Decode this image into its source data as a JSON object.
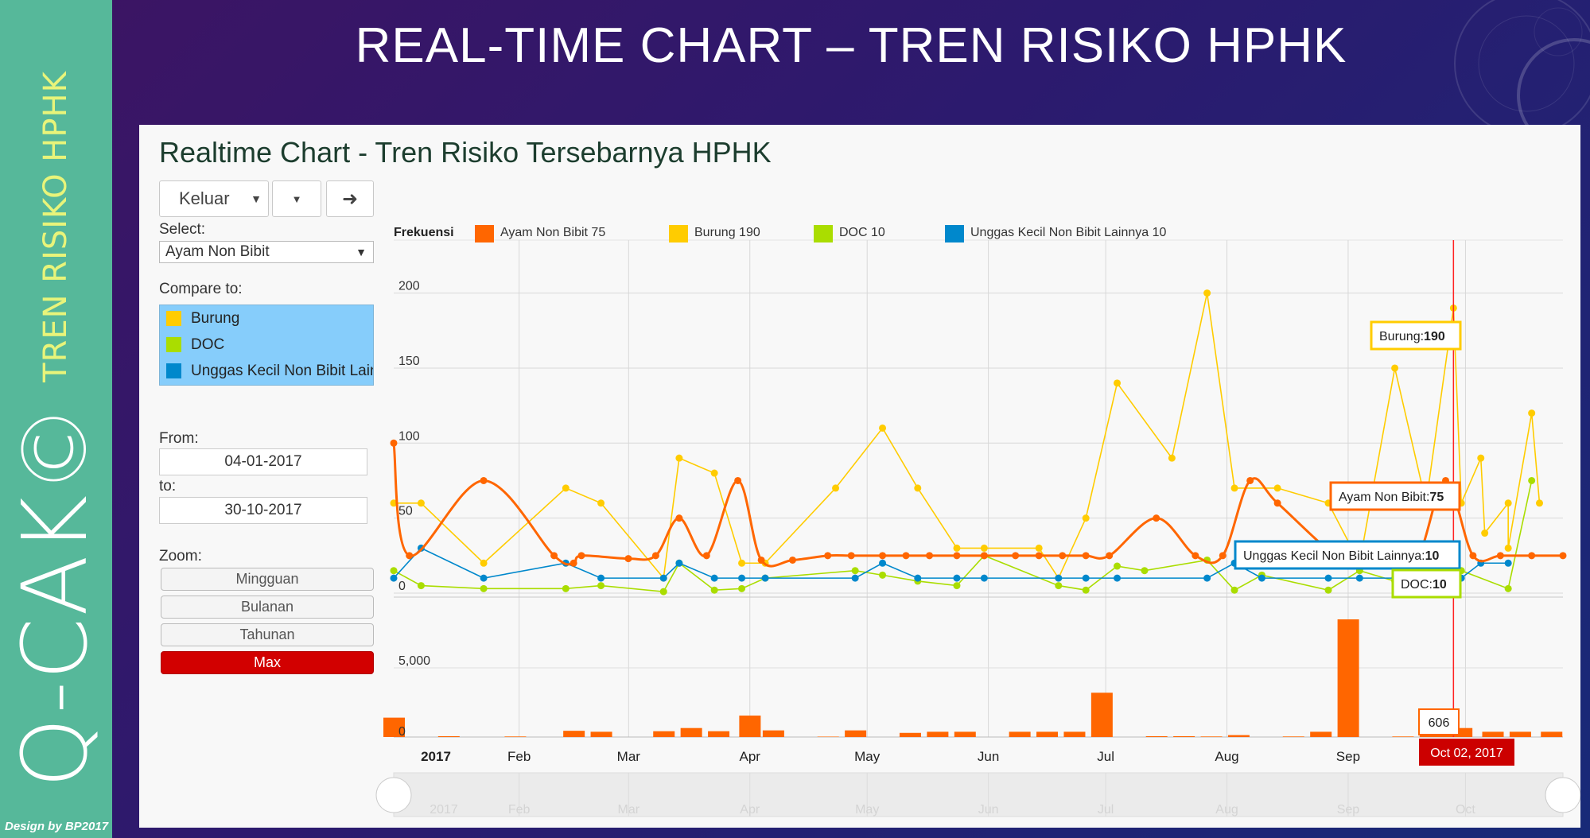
{
  "slide": {
    "title": "REAL-TIME CHART – TREN RISIKO HPHK",
    "sidebar_brand": "Q-CAK©",
    "sidebar_subtitle": "TREN RISIKO HPHK",
    "credit": "Design by BP2017"
  },
  "panel": {
    "title": "Realtime Chart - Tren Risiko Tersebarnya HPHK",
    "controls": {
      "direction_value": "Keluar",
      "go_icon": "arrow-right-icon",
      "select_label": "Select:",
      "select_value": "Ayam Non Bibit",
      "compare_label": "Compare to:",
      "compare_items": [
        "Burung",
        "DOC",
        "Unggas Kecil Non Bibit Lainnya"
      ],
      "from_label": "From:",
      "from_value": "04-01-2017",
      "to_label": "to:",
      "to_value": "30-10-2017",
      "zoom_label": "Zoom:",
      "zoom_buttons": [
        "Mingguan",
        "Bulanan",
        "Tahunan",
        "Max"
      ],
      "zoom_active": "Max"
    }
  },
  "chart_data": {
    "type": "line",
    "ylabel": "Frekuensi",
    "colors": [
      "#ff6600",
      "#ffcc00",
      "#aadd00",
      "#0088cc"
    ],
    "legend": {
      "placement": "top",
      "entries": [
        {
          "name": "Ayam Non Bibit",
          "value": "75",
          "color": "#ff6600"
        },
        {
          "name": "Burung",
          "value": "190",
          "color": "#ffcc00"
        },
        {
          "name": "DOC",
          "value": "10",
          "color": "#aadd00"
        },
        {
          "name": "Unggas Kecil Non Bibit Lainnya",
          "value": "10",
          "color": "#0088cc"
        }
      ]
    },
    "x_range": [
      "2017-01-04",
      "2017-10-30"
    ],
    "y_range": [
      0,
      230
    ],
    "y_ticks": [
      "200",
      "150",
      "100",
      "50",
      "0"
    ],
    "x_ticks": [
      "2017",
      "Feb",
      "Mar",
      "Apr",
      "May",
      "Jun",
      "Jul",
      "Aug",
      "Sep",
      "Oct"
    ],
    "navigator_ticks": [
      "2017",
      "Feb",
      "Mar",
      "Apr",
      "May",
      "Jun",
      "Jul",
      "Aug",
      "Sep",
      "Oct"
    ],
    "grid": true,
    "series": [
      {
        "name": "Ayam Non Bibit",
        "color": "#ff6600",
        "smooth": true,
        "points": [
          [
            "2017-01-04",
            100
          ],
          [
            "2017-01-08",
            25
          ],
          [
            "2017-01-27",
            75
          ],
          [
            "2017-02-14",
            25
          ],
          [
            "2017-02-19",
            20
          ],
          [
            "2017-02-21",
            25
          ],
          [
            "2017-03-05",
            23
          ],
          [
            "2017-03-12",
            25
          ],
          [
            "2017-03-18",
            50
          ],
          [
            "2017-03-25",
            25
          ],
          [
            "2017-04-02",
            75
          ],
          [
            "2017-04-08",
            22
          ],
          [
            "2017-04-16",
            22
          ],
          [
            "2017-04-25",
            25
          ],
          [
            "2017-05-01",
            25
          ],
          [
            "2017-05-09",
            25
          ],
          [
            "2017-05-15",
            25
          ],
          [
            "2017-05-21",
            25
          ],
          [
            "2017-05-28",
            25
          ],
          [
            "2017-06-04",
            25
          ],
          [
            "2017-06-12",
            25
          ],
          [
            "2017-06-18",
            25
          ],
          [
            "2017-06-24",
            25
          ],
          [
            "2017-06-30",
            25
          ],
          [
            "2017-07-06",
            25
          ],
          [
            "2017-07-18",
            50
          ],
          [
            "2017-07-28",
            25
          ],
          [
            "2017-08-04",
            25
          ],
          [
            "2017-08-11",
            75
          ],
          [
            "2017-08-18",
            60
          ],
          [
            "2017-09-02",
            25
          ],
          [
            "2017-09-09",
            25
          ],
          [
            "2017-09-16",
            25
          ],
          [
            "2017-09-23",
            25
          ],
          [
            "2017-09-30",
            75
          ],
          [
            "2017-10-07",
            25
          ],
          [
            "2017-10-14",
            25
          ],
          [
            "2017-10-22",
            25
          ],
          [
            "2017-10-30",
            25
          ]
        ]
      },
      {
        "name": "Burung",
        "color": "#ffcc00",
        "smooth": false,
        "points": [
          [
            "2017-01-04",
            60
          ],
          [
            "2017-01-11",
            60
          ],
          [
            "2017-01-27",
            20
          ],
          [
            "2017-02-17",
            70
          ],
          [
            "2017-02-26",
            60
          ],
          [
            "2017-03-14",
            10
          ],
          [
            "2017-03-18",
            90
          ],
          [
            "2017-03-27",
            80
          ],
          [
            "2017-04-03",
            20
          ],
          [
            "2017-04-09",
            20
          ],
          [
            "2017-04-27",
            70
          ],
          [
            "2017-05-09",
            110
          ],
          [
            "2017-05-18",
            70
          ],
          [
            "2017-05-28",
            30
          ],
          [
            "2017-06-04",
            30
          ],
          [
            "2017-06-18",
            30
          ],
          [
            "2017-06-23",
            10
          ],
          [
            "2017-06-30",
            50
          ],
          [
            "2017-07-08",
            140
          ],
          [
            "2017-07-22",
            90
          ],
          [
            "2017-07-31",
            200
          ],
          [
            "2017-08-07",
            70
          ],
          [
            "2017-08-18",
            70
          ],
          [
            "2017-08-31",
            60
          ],
          [
            "2017-09-08",
            20
          ],
          [
            "2017-09-17",
            150
          ],
          [
            "2017-09-25",
            60
          ],
          [
            "2017-10-04",
            60
          ],
          [
            "2017-10-10",
            40
          ],
          [
            "2017-10-16",
            60
          ],
          [
            "2017-10-24",
            60
          ],
          [
            "2017-10-02",
            190
          ],
          [
            "2017-10-09",
            90
          ],
          [
            "2017-10-16",
            30
          ],
          [
            "2017-10-22",
            120
          ]
        ]
      },
      {
        "name": "DOC",
        "color": "#aadd00",
        "smooth": false,
        "points": [
          [
            "2017-01-04",
            15
          ],
          [
            "2017-01-11",
            5
          ],
          [
            "2017-01-27",
            3
          ],
          [
            "2017-02-17",
            3
          ],
          [
            "2017-02-26",
            5
          ],
          [
            "2017-03-14",
            1
          ],
          [
            "2017-03-18",
            20
          ],
          [
            "2017-03-27",
            2
          ],
          [
            "2017-04-03",
            3
          ],
          [
            "2017-04-09",
            10
          ],
          [
            "2017-05-02",
            15
          ],
          [
            "2017-05-09",
            12
          ],
          [
            "2017-05-18",
            8
          ],
          [
            "2017-05-28",
            5
          ],
          [
            "2017-06-04",
            25
          ],
          [
            "2017-06-23",
            5
          ],
          [
            "2017-06-30",
            2
          ],
          [
            "2017-07-08",
            18
          ],
          [
            "2017-07-15",
            15
          ],
          [
            "2017-07-31",
            22
          ],
          [
            "2017-08-07",
            2
          ],
          [
            "2017-08-14",
            12
          ],
          [
            "2017-08-31",
            2
          ],
          [
            "2017-09-08",
            15
          ],
          [
            "2017-09-17",
            8
          ],
          [
            "2017-09-25",
            10
          ],
          [
            "2017-10-04",
            15
          ],
          [
            "2017-10-02",
            10
          ],
          [
            "2017-10-16",
            3
          ],
          [
            "2017-10-22",
            75
          ]
        ]
      },
      {
        "name": "Unggas Kecil Non Bibit Lainnya",
        "color": "#0088cc",
        "smooth": false,
        "points": [
          [
            "2017-01-04",
            10
          ],
          [
            "2017-01-11",
            30
          ],
          [
            "2017-01-27",
            10
          ],
          [
            "2017-02-17",
            20
          ],
          [
            "2017-02-26",
            10
          ],
          [
            "2017-03-14",
            10
          ],
          [
            "2017-03-18",
            20
          ],
          [
            "2017-03-27",
            10
          ],
          [
            "2017-04-03",
            10
          ],
          [
            "2017-04-09",
            10
          ],
          [
            "2017-05-02",
            10
          ],
          [
            "2017-05-09",
            20
          ],
          [
            "2017-05-18",
            10
          ],
          [
            "2017-05-28",
            10
          ],
          [
            "2017-06-04",
            10
          ],
          [
            "2017-06-23",
            10
          ],
          [
            "2017-06-30",
            10
          ],
          [
            "2017-07-08",
            10
          ],
          [
            "2017-07-31",
            10
          ],
          [
            "2017-08-07",
            20
          ],
          [
            "2017-08-14",
            10
          ],
          [
            "2017-08-31",
            10
          ],
          [
            "2017-09-08",
            10
          ],
          [
            "2017-09-17",
            10
          ],
          [
            "2017-09-25",
            10
          ],
          [
            "2017-10-04",
            10
          ],
          [
            "2017-10-02",
            10
          ],
          [
            "2017-10-09",
            20
          ],
          [
            "2017-10-16",
            20
          ]
        ]
      }
    ],
    "tooltip": {
      "date": "Oct 02, 2017",
      "rows": [
        {
          "label": "Burung:",
          "value": "190",
          "color": "#ffcc00"
        },
        {
          "label": "Ayam Non Bibit:",
          "value": "75",
          "color": "#ff6600"
        },
        {
          "label": "Unggas Kecil Non Bibit Lainnya:",
          "value": "10",
          "color": "#0088cc"
        },
        {
          "label": "DOC:",
          "value": "10",
          "color": "#aadd00"
        }
      ],
      "volume_value": "606"
    },
    "volume": {
      "y_ticks": [
        "5,000",
        "0"
      ],
      "y_range": [
        0,
        8500
      ],
      "color": "#ff6600",
      "bars": [
        [
          "2017-01-04",
          1400
        ],
        [
          "2017-01-18",
          60
        ],
        [
          "2017-02-04",
          40
        ],
        [
          "2017-02-19",
          450
        ],
        [
          "2017-02-26",
          380
        ],
        [
          "2017-03-14",
          420
        ],
        [
          "2017-03-21",
          650
        ],
        [
          "2017-03-28",
          420
        ],
        [
          "2017-04-05",
          1550
        ],
        [
          "2017-04-11",
          480
        ],
        [
          "2017-04-25",
          30
        ],
        [
          "2017-05-02",
          480
        ],
        [
          "2017-05-16",
          300
        ],
        [
          "2017-05-23",
          380
        ],
        [
          "2017-05-30",
          380
        ],
        [
          "2017-06-13",
          380
        ],
        [
          "2017-06-20",
          380
        ],
        [
          "2017-06-27",
          380
        ],
        [
          "2017-07-04",
          3200
        ],
        [
          "2017-07-18",
          60
        ],
        [
          "2017-07-25",
          60
        ],
        [
          "2017-08-01",
          40
        ],
        [
          "2017-08-08",
          140
        ],
        [
          "2017-08-22",
          40
        ],
        [
          "2017-08-29",
          380
        ],
        [
          "2017-09-05",
          8500
        ],
        [
          "2017-09-19",
          40
        ],
        [
          "2017-09-26",
          380
        ],
        [
          "2017-10-03",
          380
        ],
        [
          "2017-09-29",
          606
        ],
        [
          "2017-10-04",
          650
        ],
        [
          "2017-10-12",
          380
        ],
        [
          "2017-10-19",
          380
        ],
        [
          "2017-10-27",
          380
        ]
      ]
    }
  }
}
